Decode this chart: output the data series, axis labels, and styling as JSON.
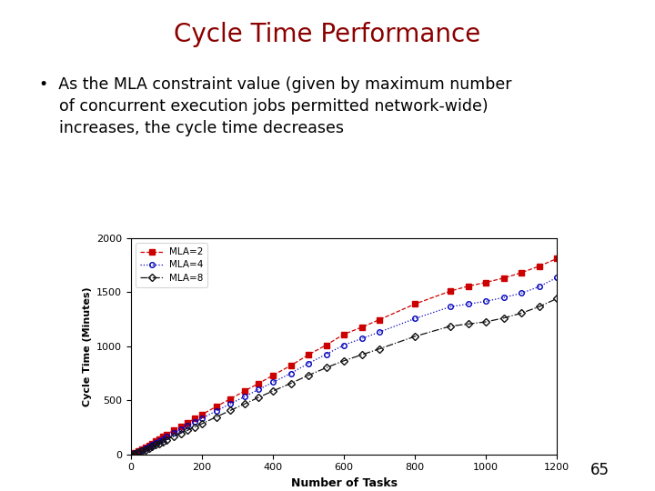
{
  "title": "Cycle Time Performance",
  "title_color": "#8B0000",
  "title_fontsize": 20,
  "bullet_text_line1": "•  As the MLA constraint value (given by maximum number",
  "bullet_text_line2": "    of concurrent execution jobs permitted network-wide)",
  "bullet_text_line3": "    increases, the cycle time decreases",
  "bullet_fontsize": 12.5,
  "xlabel": "Number of Tasks",
  "ylabel": "Cycle Time (Minutes)",
  "xlim": [
    0,
    1200
  ],
  "ylim": [
    0,
    2000
  ],
  "xticks": [
    0,
    200,
    400,
    600,
    800,
    1000,
    1200
  ],
  "yticks": [
    0,
    500,
    1000,
    1500,
    2000
  ],
  "background_color": "#ffffff",
  "page_number": "65",
  "series": [
    {
      "label": "MLA=2",
      "color": "#cc0000",
      "linestyle": "--",
      "marker": "s",
      "marker_face": "#cc0000",
      "x": [
        0,
        10,
        20,
        30,
        40,
        50,
        60,
        70,
        80,
        90,
        100,
        120,
        140,
        160,
        180,
        200,
        240,
        280,
        320,
        360,
        400,
        450,
        500,
        550,
        600,
        650,
        700,
        800,
        900,
        950,
        1000,
        1050,
        1100,
        1150,
        1200
      ],
      "y": [
        0,
        12,
        28,
        45,
        62,
        80,
        100,
        120,
        140,
        162,
        185,
        220,
        258,
        292,
        330,
        368,
        440,
        512,
        585,
        655,
        730,
        820,
        920,
        1010,
        1110,
        1175,
        1245,
        1390,
        1510,
        1555,
        1590,
        1630,
        1680,
        1740,
        1810
      ]
    },
    {
      "label": "MLA=4",
      "color": "#0000bb",
      "linestyle": ":",
      "marker": "o",
      "marker_face": "none",
      "x": [
        0,
        10,
        20,
        30,
        40,
        50,
        60,
        70,
        80,
        90,
        100,
        120,
        140,
        160,
        180,
        200,
        240,
        280,
        320,
        360,
        400,
        450,
        500,
        550,
        600,
        650,
        700,
        800,
        900,
        950,
        1000,
        1050,
        1100,
        1150,
        1200
      ],
      "y": [
        0,
        10,
        22,
        37,
        52,
        68,
        85,
        103,
        122,
        142,
        163,
        197,
        232,
        264,
        298,
        332,
        400,
        466,
        532,
        600,
        665,
        748,
        840,
        925,
        1010,
        1070,
        1130,
        1255,
        1365,
        1390,
        1415,
        1450,
        1490,
        1550,
        1635
      ]
    },
    {
      "label": "MLA=8",
      "color": "#111111",
      "linestyle": "-.",
      "marker": "D",
      "marker_face": "none",
      "x": [
        0,
        10,
        20,
        30,
        40,
        50,
        60,
        70,
        80,
        90,
        100,
        120,
        140,
        160,
        180,
        200,
        240,
        280,
        320,
        360,
        400,
        450,
        500,
        550,
        600,
        650,
        700,
        800,
        900,
        950,
        1000,
        1050,
        1100,
        1150,
        1200
      ],
      "y": [
        0,
        8,
        18,
        30,
        42,
        56,
        70,
        85,
        100,
        116,
        134,
        164,
        193,
        222,
        251,
        282,
        344,
        405,
        465,
        526,
        585,
        655,
        730,
        800,
        865,
        920,
        975,
        1090,
        1185,
        1205,
        1225,
        1260,
        1305,
        1365,
        1440
      ]
    }
  ]
}
